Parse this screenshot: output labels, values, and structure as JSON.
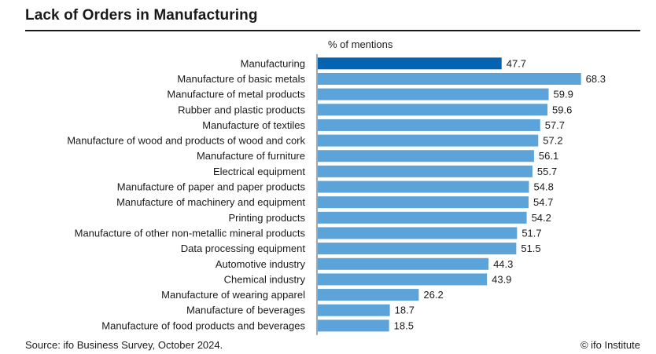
{
  "header": {
    "title": "Lack of Orders in Manufacturing"
  },
  "footer": {
    "source": "Source: ifo Business Survey, October 2024.",
    "copyright": "© ifo Institute"
  },
  "colors": {
    "highlight_bar": "#0563b0",
    "bar": "#5ba3d8",
    "axis": "#4d4d4d",
    "text": "#1a1a1a"
  },
  "chart_data": {
    "type": "bar",
    "orientation": "horizontal",
    "title": "Lack of Orders in Manufacturing",
    "unit_label": "% of mentions",
    "xlim": [
      0,
      80
    ],
    "grid": false,
    "legend": "none",
    "highlight_index": 0,
    "categories": [
      "Manufacturing",
      "Manufacture of basic metals",
      "Manufacture of metal products",
      "Rubber and plastic products",
      "Manufacture of textiles",
      "Manufacture of wood and products of wood and cork",
      "Manufacture of furniture",
      "Electrical equipment",
      "Manufacture of paper and paper products",
      "Manufacture of machinery and equipment",
      "Printing products",
      "Manufacture of other non-metallic mineral products",
      "Data processing equipment",
      "Automotive industry",
      "Chemical industry",
      "Manufacture of wearing apparel",
      "Manufacture of beverages",
      "Manufacture of food products and beverages"
    ],
    "values": [
      47.7,
      68.3,
      59.9,
      59.6,
      57.7,
      57.2,
      56.1,
      55.7,
      54.8,
      54.7,
      54.2,
      51.7,
      51.5,
      44.3,
      43.9,
      26.2,
      18.7,
      18.5
    ],
    "value_labels": [
      "47.7",
      "68.3",
      "59.9",
      "59.6",
      "57.7",
      "57.2",
      "56.1",
      "55.7",
      "54.8",
      "54.7",
      "54.2",
      "51.7",
      "51.5",
      "44.3",
      "43.9",
      "26.2",
      "18.7",
      "18.5"
    ]
  }
}
